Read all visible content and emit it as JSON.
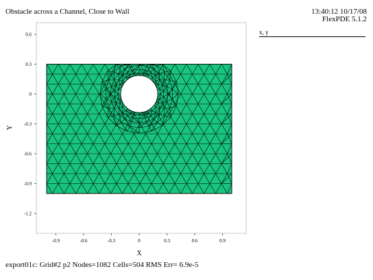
{
  "header": {
    "title": "Obstacle across a Channel, Close to Wall",
    "timestamp": "13:40:12 10/17/08",
    "version": "FlexPDE 5.1.2"
  },
  "legend": {
    "label": "x, y"
  },
  "footer": {
    "status": "export01c:  Grid#2  p2  Nodes=1082 Cells=504 RMS Err= 6.9e-5"
  },
  "axes": {
    "xlabel": "X",
    "ylabel": "Y",
    "x_ticks": [
      "-0.9",
      "-0.6",
      "-0.3",
      "0",
      "0.3",
      "0.6",
      "0.9"
    ],
    "y_ticks": [
      "0.6",
      "0.3",
      "0",
      "-0.3",
      "-0.6",
      "-0.9",
      "-1.2"
    ]
  },
  "domain": {
    "x_range": [
      -1.0,
      1.0
    ],
    "y_range": [
      -1.0,
      0.3
    ],
    "hole_center": [
      0,
      0
    ],
    "hole_radius": 0.2,
    "fill_color": "#18c47e",
    "mesh_color": "#000000"
  }
}
